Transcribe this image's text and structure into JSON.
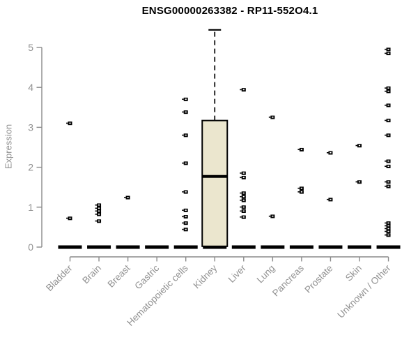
{
  "chart_data": {
    "type": "boxplot",
    "title": "ENSG00000263382 - RP11-552O4.1",
    "ylabel": "Expression",
    "ylim": [
      0,
      5
    ],
    "yticks": [
      0,
      1,
      2,
      3,
      4,
      5
    ],
    "grid": false,
    "legend": false,
    "categories": [
      "Bladder",
      "Brain",
      "Breast",
      "Gastric",
      "Hematopoietic cells",
      "Kidney",
      "Liver",
      "Lung",
      "Pancreas",
      "Prostate",
      "Skin",
      "Unknown / Other"
    ],
    "zero_bar_value": 0,
    "points": [
      [
        3.1,
        0.72
      ],
      [
        1.05,
        0.97,
        0.9,
        0.82,
        0.65
      ],
      [
        1.24
      ],
      [],
      [
        3.7,
        3.38,
        2.8,
        2.1,
        1.38,
        0.92,
        0.76,
        0.6,
        0.44
      ],
      [],
      [
        3.94,
        1.85,
        1.74,
        1.35,
        1.26,
        1.17,
        1.0,
        0.9,
        0.75
      ],
      [
        3.25,
        0.77
      ],
      [
        2.44,
        1.47,
        1.38
      ],
      [
        2.36,
        1.19
      ],
      [
        2.54,
        1.63
      ],
      [
        4.95,
        4.85,
        3.98,
        3.9,
        3.55,
        3.17,
        2.8,
        2.15,
        2.02,
        1.63,
        1.52,
        0.6,
        0.53,
        0.46,
        0.39,
        0.3
      ]
    ],
    "boxes": [
      {
        "category": "Kidney",
        "q1": 0.02,
        "median": 1.77,
        "q3": 3.17,
        "whisker_high": 5.44,
        "whisker_low": 0.02,
        "whisker_style": "dashed"
      }
    ],
    "colors": {
      "box_fill": "#ebe6ce",
      "box_border": "#000000",
      "point": "#000000",
      "axis": "#8a8a8a",
      "tick_label": "#919191",
      "title": "#000000",
      "background": "#ffffff"
    }
  }
}
